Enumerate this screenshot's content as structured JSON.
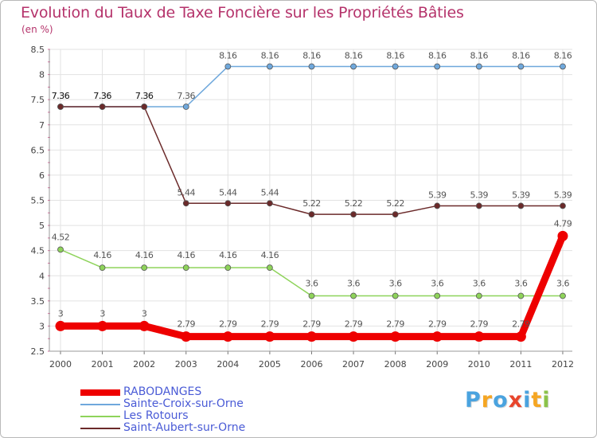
{
  "header": {
    "title": "Evolution du Taux de Taxe Foncière sur les Propriétés Bâties",
    "unit": "(en %)"
  },
  "logo": {
    "text": "Proxiti",
    "colors": [
      "#4aa3df",
      "#f5a623",
      "#4aa3df",
      "#e8452c",
      "#4aa3df",
      "#f5a623",
      "#8bc34a"
    ]
  },
  "chart_data": {
    "type": "line",
    "title": "Evolution du Taux de Taxe Foncière sur les Propriétés Bâties",
    "ylabel": "(en %)",
    "xlabel": "",
    "ylim": [
      2.5,
      8.5
    ],
    "yticks": [
      "2.5",
      "3",
      "3.5",
      "4",
      "4.5",
      "5",
      "5.5",
      "6",
      "6.5",
      "7",
      "7.5",
      "8",
      "8.5"
    ],
    "categories": [
      "2000",
      "2001",
      "2002",
      "2003",
      "2004",
      "2005",
      "2006",
      "2007",
      "2008",
      "2009",
      "2010",
      "2011",
      "2012"
    ],
    "grid": true,
    "legend_position": "bottom-left",
    "series": [
      {
        "name": "RABODANGES",
        "color": "#ee0000",
        "values": [
          3,
          3,
          3,
          2.79,
          2.79,
          2.79,
          2.79,
          2.79,
          2.79,
          2.79,
          2.79,
          2.79,
          4.79
        ],
        "labels": [
          "3",
          "3",
          "3",
          "2.79",
          "2.79",
          "2.79",
          "2.79",
          "2.79",
          "2.79",
          "2.79",
          "2.79",
          "2.79",
          "4.79"
        ]
      },
      {
        "name": "Sainte-Croix-sur-Orne",
        "color": "#6fa8dc",
        "values": [
          7.36,
          7.36,
          7.36,
          7.36,
          8.16,
          8.16,
          8.16,
          8.16,
          8.16,
          8.16,
          8.16,
          8.16,
          8.16
        ],
        "labels": [
          "7.36",
          "7.36",
          "7.36",
          "7.36",
          "8.16",
          "8.16",
          "8.16",
          "8.16",
          "8.16",
          "8.16",
          "8.16",
          "8.16",
          "8.16"
        ]
      },
      {
        "name": "Les Rotours",
        "color": "#8ed35a",
        "values": [
          4.52,
          4.16,
          4.16,
          4.16,
          4.16,
          4.16,
          3.6,
          3.6,
          3.6,
          3.6,
          3.6,
          3.6,
          3.6
        ],
        "labels": [
          "4.52",
          "4.16",
          "4.16",
          "4.16",
          "4.16",
          "4.16",
          "3.6",
          "3.6",
          "3.6",
          "3.6",
          "3.6",
          "3.6",
          "3.6"
        ]
      },
      {
        "name": "Saint-Aubert-sur-Orne",
        "color": "#6b2a2a",
        "values": [
          7.36,
          7.36,
          7.36,
          5.44,
          5.44,
          5.44,
          5.22,
          5.22,
          5.22,
          5.39,
          5.39,
          5.39,
          5.39
        ],
        "labels": [
          "7.36",
          "7.36",
          "7.36",
          "5.44",
          "5.44",
          "5.44",
          "5.22",
          "5.22",
          "5.22",
          "5.39",
          "5.39",
          "5.39",
          "5.39"
        ]
      }
    ]
  }
}
